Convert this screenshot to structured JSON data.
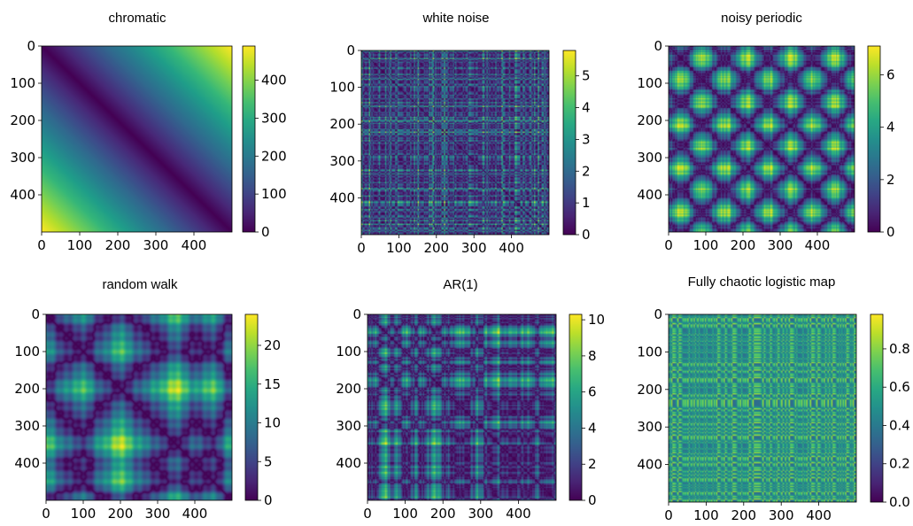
{
  "chart_data": [
    {
      "type": "heatmap",
      "title": "chromatic",
      "pattern": "chromatic",
      "size": 500,
      "xlim": [
        0,
        500
      ],
      "ylim": [
        0,
        500
      ],
      "xticks": [
        0,
        100,
        200,
        300,
        400
      ],
      "yticks": [
        0,
        100,
        200,
        300,
        400
      ],
      "colorbar_ticks": [
        0,
        100,
        200,
        300,
        400
      ],
      "value_range": [
        0,
        490
      ],
      "colormap": "viridis",
      "seed": 11
    },
    {
      "type": "heatmap",
      "title": "white noise",
      "pattern": "white-noise",
      "size": 500,
      "xlim": [
        0,
        500
      ],
      "ylim": [
        0,
        500
      ],
      "xticks": [
        0,
        100,
        200,
        300,
        400
      ],
      "yticks": [
        0,
        100,
        200,
        300,
        400
      ],
      "colorbar_ticks": [
        0,
        1,
        2,
        3,
        4,
        5
      ],
      "value_range": [
        0,
        5.8
      ],
      "colormap": "viridis",
      "seed": 23
    },
    {
      "type": "heatmap",
      "title": "noisy periodic",
      "pattern": "noisy-periodic",
      "size": 500,
      "xlim": [
        0,
        500
      ],
      "ylim": [
        0,
        500
      ],
      "xticks": [
        0,
        100,
        200,
        300,
        400
      ],
      "yticks": [
        0,
        100,
        200,
        300,
        400
      ],
      "colorbar_ticks": [
        0,
        2,
        4,
        6
      ],
      "value_range": [
        0,
        7.1
      ],
      "colormap": "viridis",
      "seed": 37
    },
    {
      "type": "heatmap",
      "title": "random walk",
      "pattern": "random-walk",
      "size": 500,
      "xlim": [
        0,
        500
      ],
      "ylim": [
        0,
        500
      ],
      "xticks": [
        0,
        100,
        200,
        300,
        400
      ],
      "yticks": [
        0,
        100,
        200,
        300,
        400
      ],
      "colorbar_ticks": [
        0,
        5,
        10,
        15,
        20
      ],
      "value_range": [
        0,
        24
      ],
      "colormap": "viridis",
      "seed": 41
    },
    {
      "type": "heatmap",
      "title": "AR(1)",
      "pattern": "ar1",
      "size": 500,
      "xlim": [
        0,
        500
      ],
      "ylim": [
        0,
        500
      ],
      "xticks": [
        0,
        100,
        200,
        300,
        400
      ],
      "yticks": [
        0,
        100,
        200,
        300,
        400
      ],
      "colorbar_ticks": [
        0,
        2,
        4,
        6,
        8,
        10
      ],
      "value_range": [
        0,
        10.3
      ],
      "colormap": "viridis",
      "seed": 53
    },
    {
      "type": "heatmap",
      "title": "Fully chaotic logistic map",
      "pattern": "logistic-map",
      "size": 500,
      "xlim": [
        0,
        500
      ],
      "ylim": [
        0,
        500
      ],
      "xticks": [
        0,
        100,
        200,
        300,
        400
      ],
      "yticks": [
        0,
        100,
        200,
        300,
        400
      ],
      "colorbar_ticks": [
        0.0,
        0.2,
        0.4,
        0.6,
        0.8
      ],
      "value_range": [
        0,
        0.98
      ],
      "colormap": "viridis",
      "seed": 67
    }
  ]
}
